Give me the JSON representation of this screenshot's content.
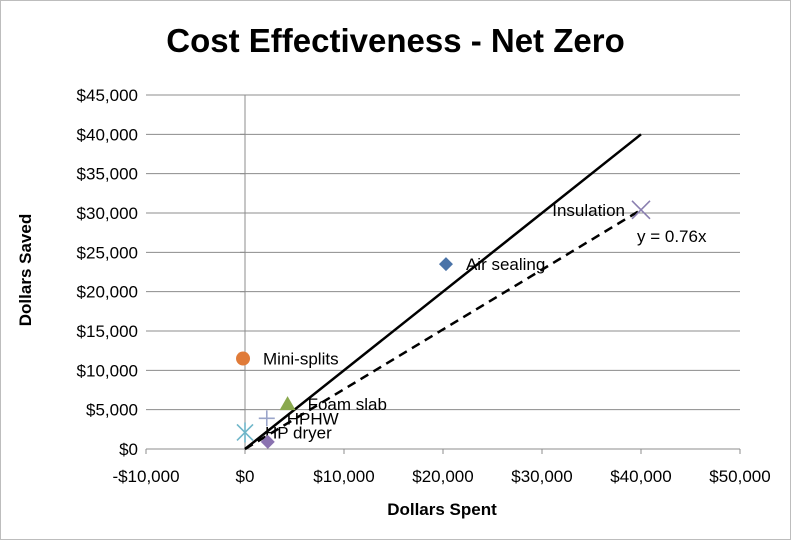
{
  "chart_data": {
    "type": "scatter",
    "title": "Cost Effectiveness - Net Zero",
    "xlabel": "Dollars Spent",
    "ylabel": "Dollars Saved",
    "xlim": [
      -10000,
      50000
    ],
    "ylim": [
      0,
      45000
    ],
    "x_ticks": [
      -10000,
      0,
      10000,
      20000,
      30000,
      40000,
      50000
    ],
    "x_tick_labels": [
      "-$10,000",
      "$0",
      "$10,000",
      "$20,000",
      "$30,000",
      "$40,000",
      "$50,000"
    ],
    "y_ticks": [
      0,
      5000,
      10000,
      15000,
      20000,
      25000,
      30000,
      35000,
      40000,
      45000
    ],
    "y_tick_labels": [
      "$0",
      "$5,000",
      "$10,000",
      "$15,000",
      "$20,000",
      "$25,000",
      "$30,000",
      "$35,000",
      "$40,000",
      "$45,000"
    ],
    "grid": true,
    "points": [
      {
        "label": "Insulation",
        "x": 40000,
        "y": 30400,
        "marker": "x",
        "color": "#8a7fb0",
        "label_side": "left"
      },
      {
        "label": "Air sealing",
        "x": 20300,
        "y": 23500,
        "marker": "diamond",
        "color": "#4a73a8",
        "label_side": "right"
      },
      {
        "label": "Mini-splits",
        "x": -200,
        "y": 11500,
        "marker": "circle",
        "color": "#e07b39",
        "label_side": "right"
      },
      {
        "label": "Foam slab",
        "x": 4300,
        "y": 5700,
        "marker": "triangle",
        "color": "#8aa94e",
        "label_side": "right"
      },
      {
        "label": "HPHW",
        "x": 2200,
        "y": 3900,
        "marker": "plus",
        "color": "#9aa4c9",
        "label_side": "right"
      },
      {
        "label": "HP dryer",
        "x": 0,
        "y": 2100,
        "marker": "star",
        "color": "#6fb6c9",
        "label_side": "right"
      },
      {
        "label": "",
        "x": 2300,
        "y": 900,
        "marker": "diamond",
        "color": "#8a72b0",
        "label_side": "none"
      }
    ],
    "lines": [
      {
        "name": "break-even",
        "style": "solid",
        "color": "#000000",
        "x": [
          0,
          40000
        ],
        "y": [
          0,
          40000
        ]
      },
      {
        "name": "trendline",
        "style": "dashed",
        "color": "#000000",
        "x": [
          0,
          40000
        ],
        "y": [
          0,
          30400
        ],
        "equation": "y = 0.76x"
      }
    ]
  }
}
